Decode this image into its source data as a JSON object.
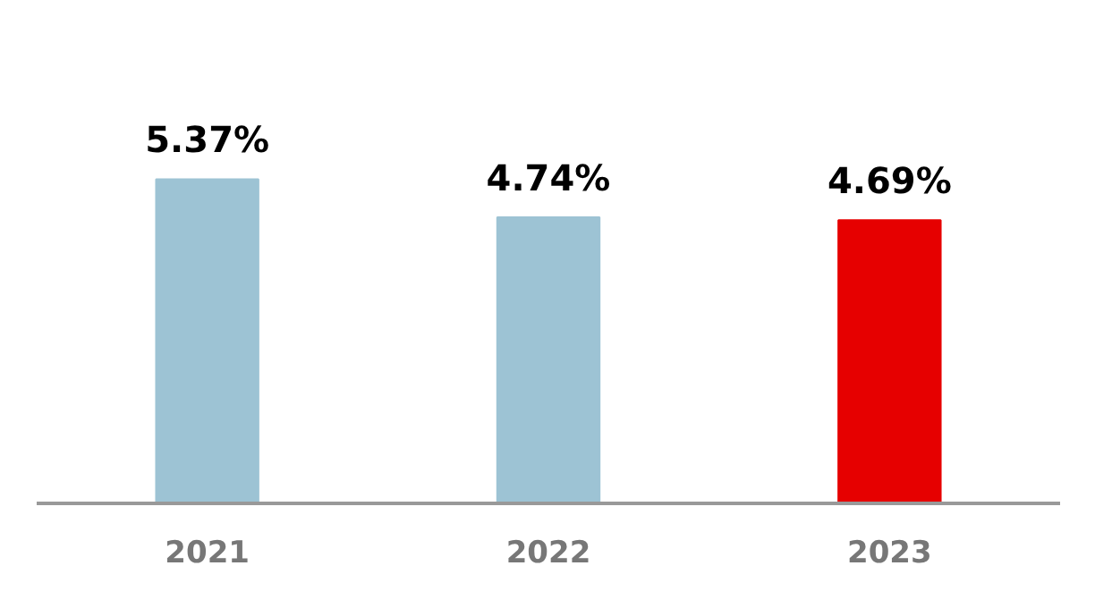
{
  "chart_data": {
    "type": "bar",
    "categories": [
      "2021",
      "2022",
      "2023"
    ],
    "values": [
      5.37,
      4.74,
      4.69
    ],
    "colors": [
      "#9dc3d4",
      "#9dc3d4",
      "#e60000"
    ],
    "value_labels": [
      "5.37%",
      "4.74%",
      "4.69%"
    ],
    "tick_labels": "x",
    "grid": false
  }
}
